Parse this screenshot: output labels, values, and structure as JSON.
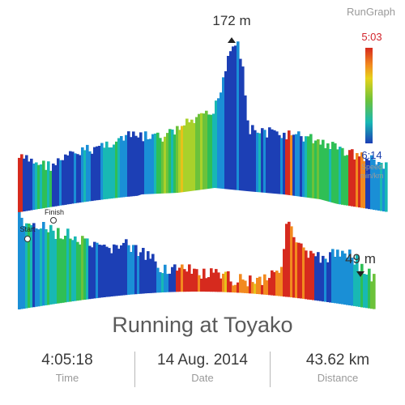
{
  "app": {
    "brand": "RunGraph"
  },
  "graph": {
    "max_elevation": "172 m",
    "min_elevation": "49 m",
    "start_label": "Start",
    "finish_label": "Finish"
  },
  "legend": {
    "fast": "5:03",
    "slow": "6:14",
    "unit_line1": "Speed",
    "unit_line2": "min/km",
    "color_fast": "#d62a1e",
    "color_slow": "#1c3fb5"
  },
  "run": {
    "title": "Running at Toyako",
    "stats": [
      {
        "value": "4:05:18",
        "label": "Time"
      },
      {
        "value": "14 Aug. 2014",
        "label": "Date"
      },
      {
        "value": "43.62 km",
        "label": "Distance"
      }
    ]
  }
}
